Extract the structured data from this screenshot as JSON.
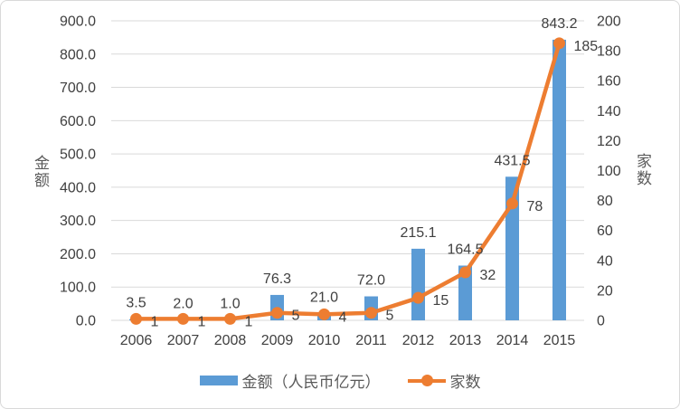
{
  "chart_data": {
    "type": "combo",
    "categories": [
      "2006",
      "2007",
      "2008",
      "2009",
      "2010",
      "2011",
      "2012",
      "2013",
      "2014",
      "2015"
    ],
    "series": [
      {
        "name": "金额（人民币亿元）",
        "type": "bar",
        "axis": "left",
        "color": "#5B9BD5",
        "values": [
          3.5,
          2.0,
          1.0,
          76.3,
          21.0,
          72.0,
          215.1,
          164.5,
          431.5,
          843.2
        ],
        "labels": [
          "3.5",
          "2.0",
          "1.0",
          "76.3",
          "21.0",
          "72.0",
          "215.1",
          "164.5",
          "431.5",
          "843.2"
        ]
      },
      {
        "name": "家数",
        "type": "line",
        "axis": "right",
        "color": "#ED7D31",
        "values": [
          1,
          1,
          1,
          5,
          4,
          5,
          15,
          32,
          78,
          185
        ],
        "labels": [
          "1",
          "1",
          "1",
          "5",
          "4",
          "5",
          "15",
          "32",
          "78",
          "185"
        ]
      }
    ],
    "left_axis": {
      "title": "金额",
      "min": 0,
      "max": 900,
      "step": 100,
      "ticks": [
        "0.0",
        "100.0",
        "200.0",
        "300.0",
        "400.0",
        "500.0",
        "600.0",
        "700.0",
        "800.0",
        "900.0"
      ]
    },
    "right_axis": {
      "title": "家数",
      "min": 0,
      "max": 200,
      "step": 20,
      "ticks": [
        "0",
        "20",
        "40",
        "60",
        "80",
        "100",
        "120",
        "140",
        "160",
        "180",
        "200"
      ]
    },
    "legend": {
      "position": "bottom",
      "items": [
        {
          "label": "金额（人民币亿元）",
          "color": "#5B9BD5",
          "marker": "bar"
        },
        {
          "label": "家数",
          "color": "#ED7D31",
          "marker": "line-dot"
        }
      ]
    },
    "grid": true,
    "colors": {
      "gridline": "#D9D9D9",
      "axis_line": "#D9D9D9",
      "text": "#404040",
      "axis_title_text": "#595959",
      "background": "#FFFFFF",
      "border": "#D9D9D9"
    }
  }
}
